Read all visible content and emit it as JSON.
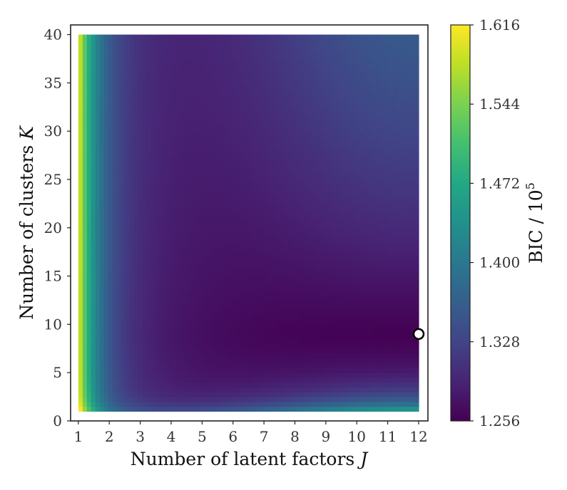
{
  "chart_data": {
    "type": "heatmap",
    "title": "",
    "xlabel": "Number of latent factors",
    "xlabel_var": "J",
    "ylabel": "Number of clusters",
    "ylabel_var": "K",
    "x_ticks": [
      1,
      2,
      3,
      4,
      5,
      6,
      7,
      8,
      9,
      10,
      11,
      12
    ],
    "y_ticks": [
      0,
      5,
      10,
      15,
      20,
      25,
      30,
      35,
      40
    ],
    "xlim": [
      0.75,
      12.3
    ],
    "ylim": [
      0,
      41
    ],
    "x_range": [
      1,
      12
    ],
    "y_range": [
      1,
      40
    ],
    "grid": false,
    "colormap": "viridis",
    "colorbar": {
      "label": "BIC / 10",
      "label_exponent": "5",
      "ticks": [
        "1.616",
        "1.544",
        "1.472",
        "1.400",
        "1.328",
        "1.256"
      ],
      "range": [
        1.256,
        1.616
      ]
    },
    "minimum_marker": {
      "x": 12,
      "y": 9
    }
  }
}
